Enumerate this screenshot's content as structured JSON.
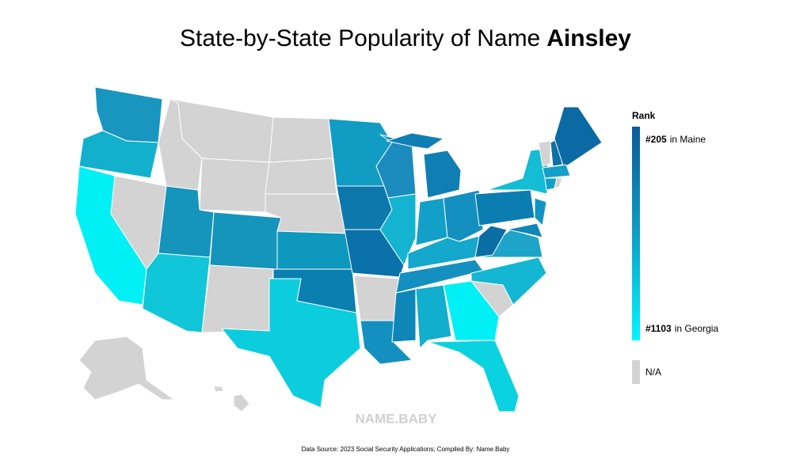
{
  "title": {
    "prefix": "State-by-State Popularity of Name",
    "name": "Ainsley"
  },
  "legend": {
    "title": "Rank",
    "top": {
      "rank": "#205",
      "place": "in Maine"
    },
    "bottom": {
      "rank": "#1103",
      "place": "in Georgia"
    },
    "na": "N/A"
  },
  "watermark": "NAME.BABY",
  "source": "Data Source: 2023 Social Security Applications; Compiled By: Name.Baby"
}
